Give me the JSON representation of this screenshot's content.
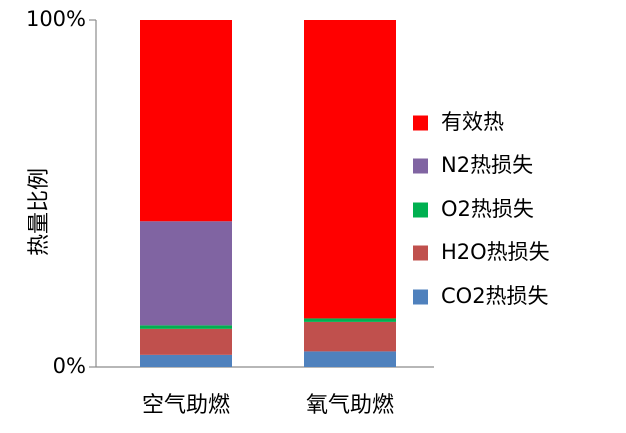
{
  "chart_data": {
    "type": "bar",
    "stacked": true,
    "percent": true,
    "ylabel": "热量比例",
    "xlabel": "",
    "ylim": [
      0,
      100
    ],
    "y_ticks": [
      "0%",
      "100%"
    ],
    "categories": [
      "空气助燃",
      "氧气助燃"
    ],
    "legend_position": "right",
    "series": [
      {
        "name": "CO2热损失",
        "color": "#4F81BD",
        "values": [
          3.5,
          4.5
        ]
      },
      {
        "name": "H2O热损失",
        "color": "#C0504D",
        "values": [
          7.5,
          8.5
        ]
      },
      {
        "name": "O2热损失",
        "color": "#00B050",
        "values": [
          1,
          1
        ]
      },
      {
        "name": "N2热损失",
        "color": "#8064A2",
        "values": [
          30,
          0
        ]
      },
      {
        "name": "有效热",
        "color": "#FF0000",
        "values": [
          58,
          86
        ]
      }
    ]
  }
}
